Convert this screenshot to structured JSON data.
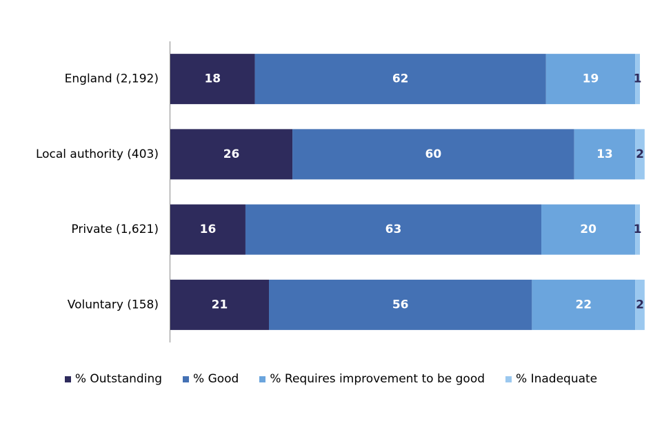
{
  "chart_data": {
    "type": "bar",
    "orientation": "horizontal",
    "stacked": true,
    "categories": [
      "England (2,192)",
      "Local authority (403)",
      "Private (1,621)",
      "Voluntary (158)"
    ],
    "series": [
      {
        "name": "% Outstanding",
        "values": [
          18,
          26,
          16,
          21
        ],
        "color": "#2e2b5c",
        "label_color": "#ffffff"
      },
      {
        "name": "% Good",
        "values": [
          62,
          60,
          63,
          56
        ],
        "color": "#4471b4",
        "label_color": "#ffffff"
      },
      {
        "name": "% Requires improvement to be good",
        "values": [
          19,
          13,
          20,
          22
        ],
        "color": "#6ba5dd",
        "label_color": "#ffffff"
      },
      {
        "name": "% Inadequate",
        "values": [
          1,
          2,
          1,
          2
        ],
        "color": "#9bc8ef",
        "label_color": "#2e2b5c"
      }
    ],
    "xlim": [
      0,
      100
    ],
    "grid": false,
    "legend_position": "bottom",
    "title": "",
    "xlabel": "",
    "ylabel": ""
  }
}
